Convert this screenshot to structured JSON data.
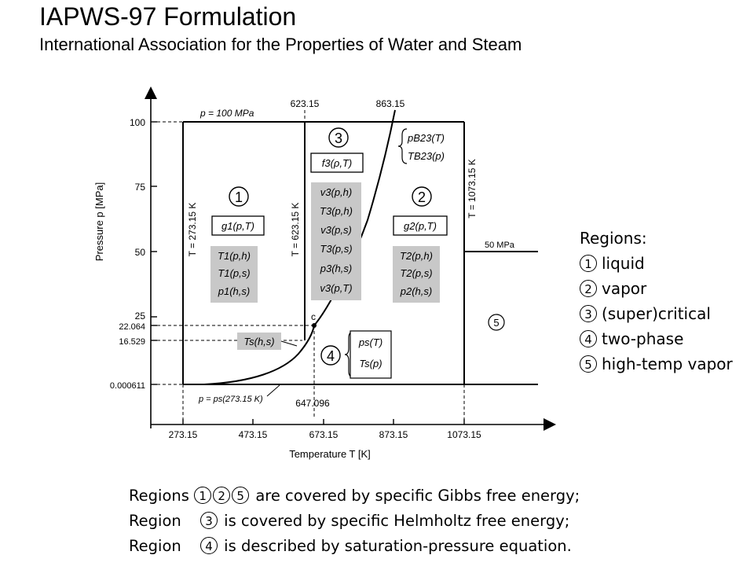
{
  "title": "IAPWS-97 Formulation",
  "subtitle": "International Association for the Properties of Water and Steam",
  "diagram": {
    "y_axis_label": "Pressure p [MPa]",
    "x_axis_label": "Temperature T [K]",
    "y_ticks": [
      "100",
      "75",
      "50",
      "25",
      "22.064",
      "16.529",
      "0.000611"
    ],
    "x_ticks": [
      "273.15",
      "473.15",
      "673.15",
      "873.15",
      "1073.15"
    ],
    "top_labels": [
      "623.15",
      "863.15"
    ],
    "p100_label": "p = 100 MPa",
    "t27315_label": "T = 273.15 K",
    "t62315_label": "T = 623.15 K",
    "t107315_label": "T = 1073.15 K",
    "p50_label": "50 MPa",
    "bottom_label": "p = ps(273.15 K)",
    "t647_label": "647.096",
    "critical_point_label": "c",
    "region_numbers": [
      "1",
      "2",
      "3",
      "4",
      "5"
    ],
    "region1_main": "g1(p,T)",
    "region1_backward": [
      "T1(p,h)",
      "T1(p,s)",
      "p1(h,s)"
    ],
    "region2_main": "g2(p,T)",
    "region2_backward": [
      "T2(p,h)",
      "T2(p,s)",
      "p2(h,s)"
    ],
    "region3_main": "f3(ρ,T)",
    "region3_backward": [
      "v3(p,h)",
      "T3(p,h)",
      "v3(p,s)",
      "T3(p,s)",
      "p3(h,s)",
      "v3(p,T)"
    ],
    "b23_functions": [
      "pB23(T)",
      "TB23(p)"
    ],
    "region4_functions": [
      "ps(T)",
      "Ts(p)"
    ],
    "ts_hs": "Ts(h,s)"
  },
  "legend": {
    "heading": "Regions:",
    "items": [
      {
        "num": "1",
        "label": "liquid"
      },
      {
        "num": "2",
        "label": "vapor"
      },
      {
        "num": "3",
        "label": "(super)critical"
      },
      {
        "num": "4",
        "label": "two-phase"
      },
      {
        "num": "5",
        "label": "high-temp vapor"
      }
    ]
  },
  "notes": {
    "line1_prefix": "Regions",
    "line1_nums": [
      "1",
      "2",
      "5"
    ],
    "line1_text": "are covered by specific Gibbs free energy;",
    "line2_prefix": "Region",
    "line2_num": "3",
    "line2_text": "is covered by specific Helmholtz free energy;",
    "line3_prefix": "Region",
    "line3_num": "4",
    "line3_text": "is described by saturation-pressure equation."
  }
}
